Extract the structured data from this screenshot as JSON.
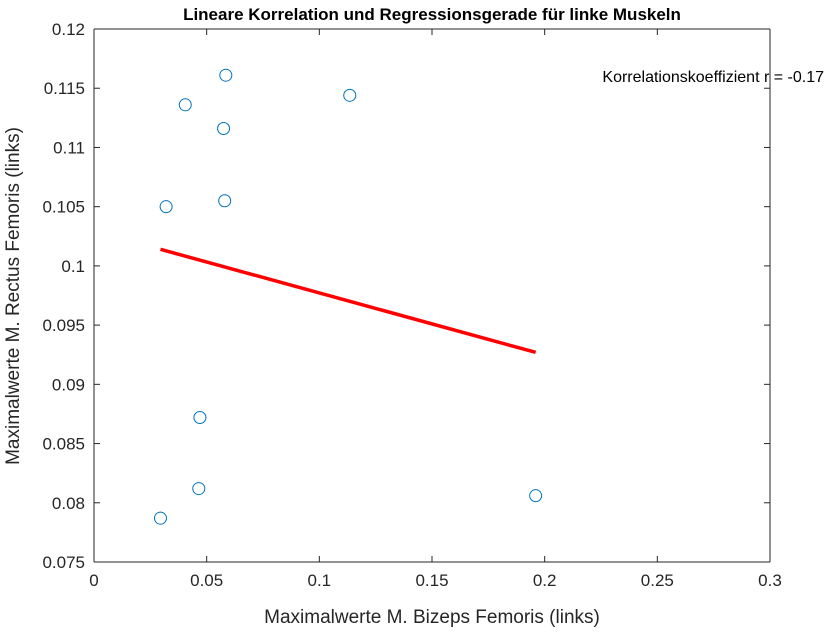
{
  "chart_data": {
    "type": "scatter",
    "title": "Lineare Korrelation und Regressionsgerade für linke Muskeln",
    "xlabel": "Maximalwerte M. Bizeps Femoris (links)",
    "ylabel": "Maximalwerte M. Rectus Femoris (links)",
    "xlim": [
      0,
      0.3
    ],
    "ylim": [
      0.075,
      0.12
    ],
    "xticks": [
      0,
      0.05,
      0.1,
      0.15,
      0.2,
      0.25,
      0.3
    ],
    "xtick_labels": [
      "0",
      "0.05",
      "0.1",
      "0.15",
      "0.2",
      "0.25",
      "0.3"
    ],
    "yticks": [
      0.075,
      0.08,
      0.085,
      0.09,
      0.095,
      0.1,
      0.105,
      0.11,
      0.115,
      0.12
    ],
    "ytick_labels": [
      "0.075",
      "0.08",
      "0.085",
      "0.09",
      "0.095",
      "0.1",
      "0.105",
      "0.11",
      "0.115",
      "0.12"
    ],
    "grid": false,
    "annotation": "Korrelationskoeffizient r = -0.17",
    "series": [
      {
        "type": "scatter",
        "marker": "open-circle",
        "color": "#0072BD",
        "points": [
          {
            "x": 0.0585,
            "y": 0.1161
          },
          {
            "x": 0.0405,
            "y": 0.1136
          },
          {
            "x": 0.1135,
            "y": 0.1144
          },
          {
            "x": 0.0575,
            "y": 0.1116
          },
          {
            "x": 0.032,
            "y": 0.105
          },
          {
            "x": 0.058,
            "y": 0.1055
          },
          {
            "x": 0.047,
            "y": 0.0872
          },
          {
            "x": 0.0465,
            "y": 0.0812
          },
          {
            "x": 0.0295,
            "y": 0.0787
          },
          {
            "x": 0.196,
            "y": 0.0806
          }
        ]
      },
      {
        "type": "line",
        "color": "#FF0000",
        "points": [
          {
            "x": 0.0295,
            "y": 0.1014
          },
          {
            "x": 0.196,
            "y": 0.0927
          }
        ]
      }
    ]
  }
}
